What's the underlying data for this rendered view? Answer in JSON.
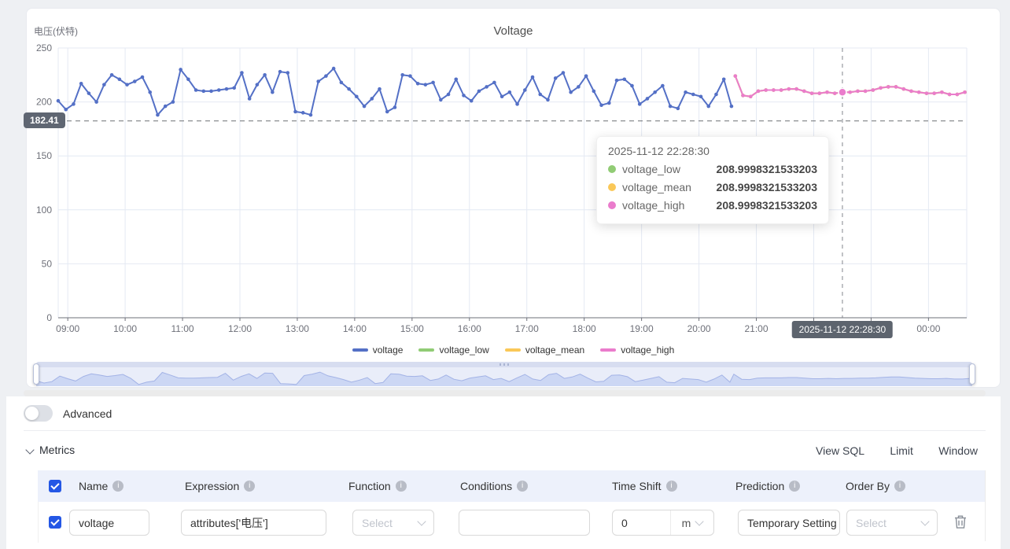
{
  "chart_data": {
    "type": "line",
    "title": "Voltage",
    "y_axis": {
      "name": "电压(伏特)",
      "min": 0,
      "max": 250,
      "ticks": [
        0,
        50,
        100,
        150,
        200,
        250
      ]
    },
    "x_axis": {
      "start_min": 530,
      "end_min": 1480,
      "ticks": [
        {
          "min": 540,
          "label": "09:00"
        },
        {
          "min": 600,
          "label": "10:00"
        },
        {
          "min": 660,
          "label": "11:00"
        },
        {
          "min": 720,
          "label": "12:00"
        },
        {
          "min": 780,
          "label": "13:00"
        },
        {
          "min": 840,
          "label": "14:00"
        },
        {
          "min": 900,
          "label": "15:00"
        },
        {
          "min": 960,
          "label": "16:00"
        },
        {
          "min": 1020,
          "label": "17:00"
        },
        {
          "min": 1080,
          "label": "18:00"
        },
        {
          "min": 1140,
          "label": "19:00"
        },
        {
          "min": 1200,
          "label": "20:00"
        },
        {
          "min": 1260,
          "label": "21:00"
        },
        {
          "min": 1320,
          "label": "22:00"
        },
        {
          "min": 1380,
          "label": "23:00"
        },
        {
          "min": 1440,
          "label": "00:00"
        }
      ]
    },
    "mark_line": {
      "value": 182.41,
      "label": "182.41"
    },
    "axis_pointer": {
      "time_min": 1350,
      "label": "2025-11-12 22:28:30"
    },
    "series": [
      {
        "name": "voltage",
        "color": "#5470c6",
        "start_min": 530,
        "step_min": 8,
        "values": [
          201,
          193,
          198,
          217,
          208,
          200,
          216,
          225,
          221,
          216,
          219,
          223,
          209,
          188,
          196,
          200,
          230,
          221,
          211,
          210,
          210,
          211,
          212,
          213,
          227,
          203,
          216,
          225,
          209,
          228,
          227,
          191,
          190,
          188,
          219,
          224,
          231,
          218,
          212,
          205,
          196,
          203,
          212,
          191,
          195,
          225,
          224,
          217,
          216,
          218,
          202,
          207,
          221,
          206,
          201,
          210,
          214,
          218,
          205,
          209,
          198,
          211,
          223,
          207,
          202,
          222,
          227,
          209,
          214,
          224,
          210,
          197,
          199,
          220,
          221,
          215,
          198,
          203,
          209,
          215,
          196,
          194,
          209,
          207,
          205,
          196,
          207,
          221,
          196
        ]
      },
      {
        "name": "voltage_low",
        "color": "#91cc75",
        "start_min": 1238,
        "step_min": 8,
        "values": [
          224,
          206,
          205,
          210,
          211,
          211,
          211,
          212,
          212,
          210,
          208,
          208,
          209,
          208,
          209,
          209,
          210,
          210,
          211,
          213,
          214,
          214,
          212,
          210,
          209,
          208,
          208,
          209,
          207,
          207,
          209
        ]
      },
      {
        "name": "voltage_mean",
        "color": "#fac858",
        "start_min": 1238,
        "step_min": 8,
        "values": [
          224,
          206,
          205,
          210,
          211,
          211,
          211,
          212,
          212,
          210,
          208,
          208,
          209,
          208,
          209,
          209,
          210,
          210,
          211,
          213,
          214,
          214,
          212,
          210,
          209,
          208,
          208,
          209,
          207,
          207,
          209
        ]
      },
      {
        "name": "voltage_high",
        "color": "#ea7ccc",
        "start_min": 1238,
        "step_min": 8,
        "values": [
          224,
          206,
          205,
          210,
          211,
          211,
          211,
          212,
          212,
          210,
          208,
          208,
          209,
          208,
          209,
          209,
          210,
          210,
          211,
          213,
          214,
          214,
          212,
          210,
          209,
          208,
          208,
          209,
          207,
          207,
          209
        ]
      }
    ],
    "legend": [
      {
        "label": "voltage",
        "color": "#5470c6"
      },
      {
        "label": "voltage_low",
        "color": "#91cc75"
      },
      {
        "label": "voltage_mean",
        "color": "#fac858"
      },
      {
        "label": "voltage_high",
        "color": "#ea7ccc"
      }
    ],
    "tooltip": {
      "title": "2025-11-12 22:28:30",
      "rows": [
        {
          "name": "voltage_low",
          "color": "#91cc75",
          "value": "208.9998321533203"
        },
        {
          "name": "voltage_mean",
          "color": "#fac858",
          "value": "208.9998321533203"
        },
        {
          "name": "voltage_high",
          "color": "#ea7ccc",
          "value": "208.9998321533203"
        }
      ]
    }
  },
  "ui": {
    "advanced_label": "Advanced",
    "metrics": {
      "title": "Metrics",
      "actions": {
        "view_sql": "View SQL",
        "limit": "Limit",
        "window": "Window"
      },
      "headers": [
        "Name",
        "Expression",
        "Function",
        "Conditions",
        "Time Shift",
        "Prediction",
        "Order By"
      ],
      "row": {
        "name": "voltage",
        "expression": "attributes['电压']",
        "function_placeholder": "Select",
        "conditions_value": "",
        "time_shift_value": "0",
        "time_shift_unit": "m",
        "prediction": "Temporary Setting",
        "order_by_placeholder": "Select"
      }
    },
    "colors": {
      "accent_blue": "#2457e5",
      "forecast_pink": "#ea7ccc"
    }
  }
}
